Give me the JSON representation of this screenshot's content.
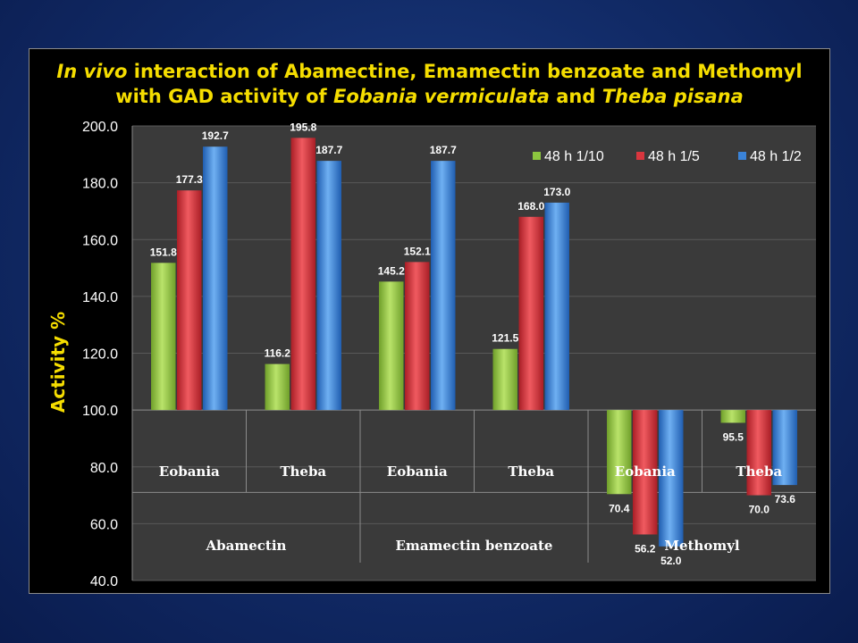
{
  "title": {
    "line1_italic": "In vivo",
    "line1_rest": " interaction of Abamectine, Emamectin benzoate and Methomyl",
    "line2_prefix": "with GAD activity of ",
    "line2_italic1": "Eobania vermiculata",
    "line2_mid": " and ",
    "line2_italic2": "Theba pisana"
  },
  "colors": {
    "background": "#13306f",
    "panel": "#000000",
    "plot_area": "#3a3a3a",
    "title": "#f5dd00",
    "series": [
      "#8cc63f",
      "#d9363e",
      "#3a83d8"
    ]
  },
  "chart_data": {
    "type": "bar",
    "ylabel": "Activity  %",
    "ylim": [
      40,
      200
    ],
    "yticks": [
      "200.0",
      "180.0",
      "160.0",
      "140.0",
      "120.0",
      "100.0",
      "80.0",
      "60.0",
      "40.0"
    ],
    "baseline": 100,
    "grid": true,
    "legend_position": "top-right",
    "categories": [
      "Eobania",
      "Theba",
      "Eobania",
      "Theba",
      "Eobania",
      "Theba"
    ],
    "groups": [
      "Abamectin",
      "Emamectin benzoate",
      "Methomyl"
    ],
    "series": [
      {
        "name": "48 h  1/10",
        "values": [
          151.8,
          116.2,
          145.2,
          121.5,
          70.4,
          95.5
        ],
        "labels": [
          "151.8",
          "116.2",
          "145.2",
          "121.5",
          "70.4",
          "95.5"
        ]
      },
      {
        "name": "48 h  1/5",
        "values": [
          177.3,
          195.8,
          152.1,
          168.0,
          56.2,
          70.0
        ],
        "labels": [
          "177.3",
          "195.8",
          "152.1",
          "168.0",
          "56.2",
          "70.0"
        ]
      },
      {
        "name": "48 h  1/2",
        "values": [
          192.7,
          187.7,
          187.7,
          173.0,
          52.0,
          73.6
        ],
        "labels": [
          "192.7",
          "187.7",
          "187.7",
          "173.0",
          "52.0",
          "73.6"
        ]
      }
    ]
  }
}
